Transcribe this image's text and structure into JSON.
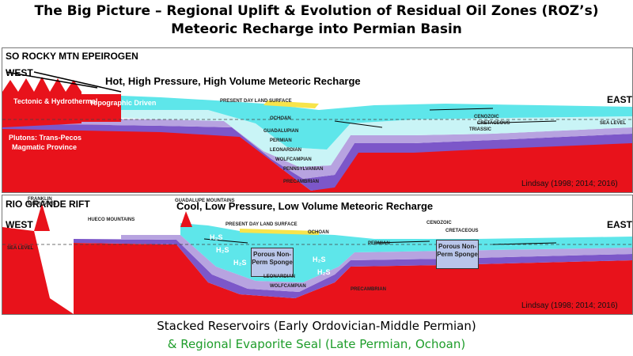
{
  "title_line1": "The Big Picture – Regional Uplift & Evolution of Residual Oil Zones (ROZ’s)",
  "title_line2": "Meteoric Recharge into Permian Basin",
  "panel1": {
    "header": "SO ROCKY MTN EPEIROGEN",
    "west": "WEST",
    "east": "EAST",
    "headline": "Hot, High Pressure, High Volume Meteoric Recharge",
    "tectonic": "Tectonic & Hydrothermal",
    "topographic": "Topographic Driven",
    "plutons_1": "Plutons: Trans-Pecos",
    "plutons_2": "Magmatic Province",
    "citation": "Lindsay (1998; 2014; 2016)",
    "units": {
      "ochoan": "OCHOAN",
      "guadalupian": "GUADALUPIAN",
      "permian": "PERMIAN",
      "leonardian": "LEONARDIAN",
      "wolfcampian": "WOLFCAMPIAN",
      "pennsylvanian": "PENNSYLVANIAN",
      "precambrian": "PRECAMBRIAN",
      "cenozoic": "CENOZOIC",
      "cretaceous": "CRETACEOUS",
      "triassic": "TRIASSIC",
      "present_day": "PRESENT DAY LAND SURFACE",
      "sea_level": "SEA LEVEL"
    }
  },
  "panel2": {
    "header": "RIO GRANDE RIFT",
    "west": "WEST",
    "east": "EAST",
    "headline": "Cool, Low Pressure, Low Volume Meteoric Recharge",
    "franklin": "FRANKLIN MOUNTAINS",
    "hueco": "HUECO MOUNTAINS",
    "guadalupe": "GUADALUPE MOUNTAINS",
    "h2s": "H₂S",
    "sponge_1": "Porous Non-Perm Sponge",
    "sponge_2": "Porous Non-Perm Sponge",
    "citation": "Lindsay (1998; 2014; 2016)",
    "units": {
      "ochoan": "OCHOAN",
      "permian": "PERMIAN",
      "leonardian": "LEONARDIAN",
      "wolfcampian": "WOLFCAMPIAN",
      "precambrian": "PRECAMBRIAN",
      "cenozoic": "CENOZOIC",
      "cretaceous": "CRETACEOUS",
      "present_day": "PRESENT DAY LAND SURFACE",
      "sea_level": "SEA LEVEL"
    }
  },
  "bottom_line1": "Stacked Reservoirs (Early Ordovician-Middle Permian)",
  "bottom_line2": "& Regional Evaporite Seal (Late Permian, Ochoan)",
  "colors": {
    "precambrian": "#e8121b",
    "cyan_layer": "#5ee6ea",
    "pale_blue": "#c9f4f6",
    "lavender": "#b7a3e0",
    "violet": "#7c57c9",
    "ochoan": "#f7e44b",
    "permian_blue": "#4cc7f0",
    "bottom_green": "#1e9d2a"
  }
}
